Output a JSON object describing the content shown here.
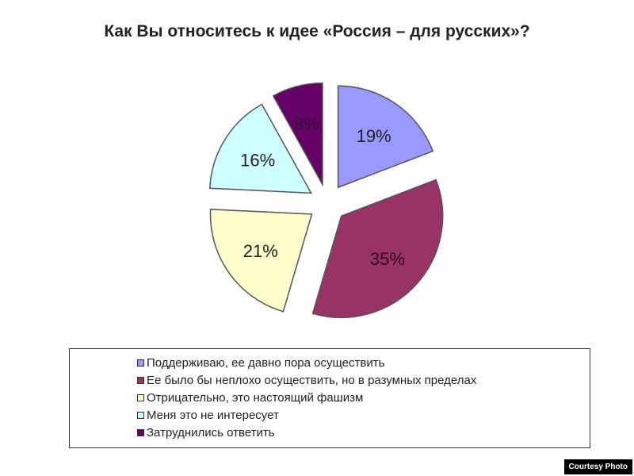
{
  "chart_data": {
    "type": "pie",
    "title": "Как Вы относитесь к идее «Россия – для русских»?",
    "exploded": true,
    "legend_position": "bottom",
    "slices": [
      {
        "name": "Поддерживаю, ее давно пора осуществить",
        "value": 19,
        "label": "19%",
        "color": "#9999ff"
      },
      {
        "name": "Ее было бы неплохо осуществить, но в разумных пределах",
        "value": 35,
        "label": "35%",
        "color": "#993366"
      },
      {
        "name": "Отрицательно, это настоящий фашизм",
        "value": 21,
        "label": "21%",
        "color": "#ffffcc"
      },
      {
        "name": "Меня это не интересует",
        "value": 16,
        "label": "16%",
        "color": "#ccffff"
      },
      {
        "name": "Затруднились ответить",
        "value": 8,
        "label": "8%",
        "color": "#660066"
      }
    ]
  },
  "courtesy": "Courtesy Photo"
}
